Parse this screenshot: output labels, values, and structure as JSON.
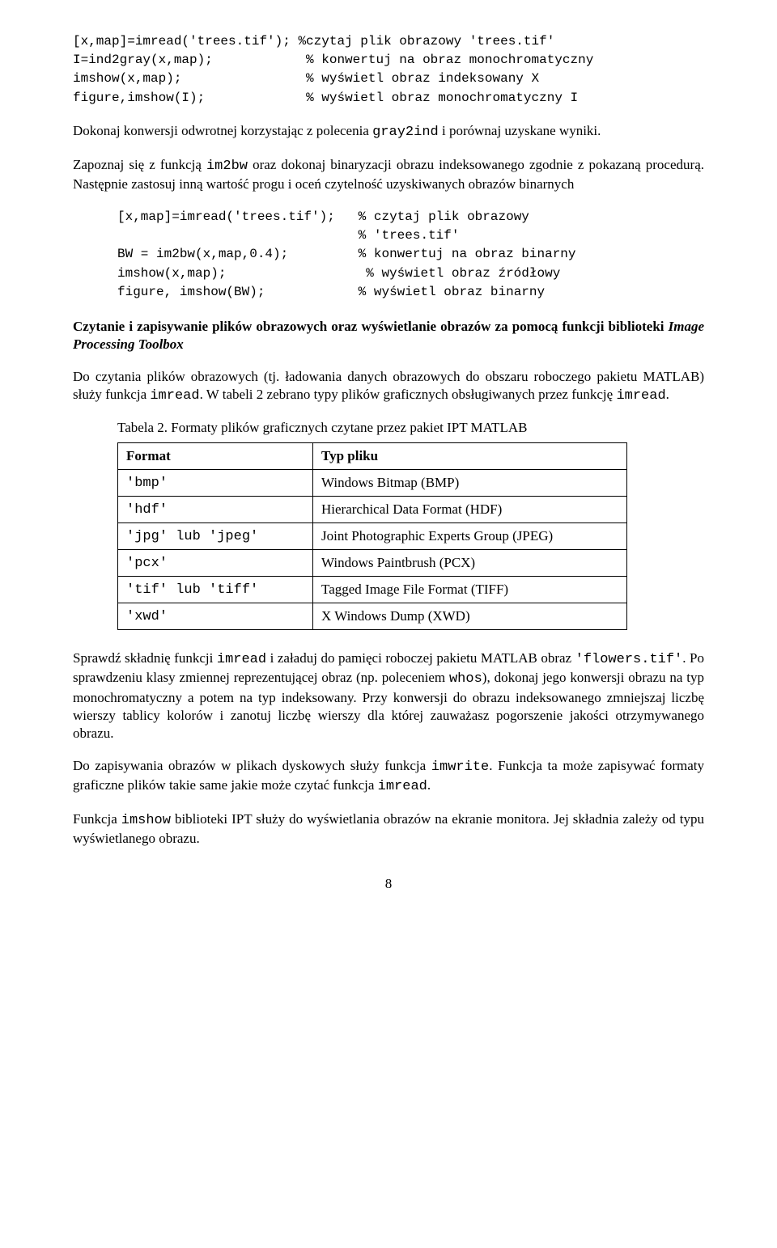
{
  "code_block_1": {
    "l1a": "[x,map]=imread('trees.tif');",
    "l1b": "%czytaj plik obrazowy 'trees.tif'",
    "l2a": "I=ind2gray(x,map);",
    "l2b": "% konwertuj na obraz monochromatyczny",
    "l3a": "imshow(x,map);",
    "l3b": "% wyświetl obraz indeksowany X",
    "l4a": "figure,imshow(I);",
    "l4b": "% wyświetl obraz monochromatyczny I"
  },
  "para_1a": "Dokonaj konwersji odwrotnej korzystając z polecenia ",
  "para_1_code": "gray2ind",
  "para_1b": "  i porównaj uzyskane wyniki.",
  "para_2a": "Zapoznaj się z funkcją ",
  "para_2_code": "im2bw",
  "para_2b": "  oraz dokonaj binaryzacji obrazu indeksowanego zgodnie z pokazaną procedurą. Następnie zastosuj inną wartość  progu i oceń czytelność uzyskiwanych obrazów binarnych",
  "code_block_2": {
    "l1a": "[x,map]=imread('trees.tif');",
    "l1b": "% czytaj plik obrazowy",
    "l2b": "% 'trees.tif'",
    "l3a": "BW = im2bw(x,map,0.4);",
    "l3b": "% konwertuj na obraz binarny",
    "l4a": "imshow(x,map);",
    "l4b": "% wyświetl obraz źródłowy",
    "l5a": "figure, imshow(BW);",
    "l5b": "% wyświetl obraz binarny"
  },
  "heading_1a": "Czytanie i zapisywanie plików obrazowych oraz wyświetlanie obrazów za pomocą funkcji biblioteki ",
  "heading_1_italic": "Image Processing Toolbox",
  "para_3a": "Do czytania plików obrazowych (tj. ładowania danych obrazowych do obszaru roboczego pakietu MATLAB) służy funkcja ",
  "para_3_code1": "imread",
  "para_3b": ". W tabeli 2 zebrano typy plików graficznych obsługiwanych przez funkcję ",
  "para_3_code2": "imread",
  "para_3c": ".",
  "table_caption": "Tabela 2. Formaty plików graficznych czytane przez pakiet IPT MATLAB",
  "table": {
    "header_format": "Format",
    "header_type": "Typ pliku",
    "rows": [
      {
        "format": "'bmp'",
        "type": "Windows Bitmap (BMP)"
      },
      {
        "format": "'hdf'",
        "type": "Hierarchical Data Format  (HDF)"
      },
      {
        "format": "'jpg' lub 'jpeg'",
        "type": "Joint Photographic Experts Group (JPEG)"
      },
      {
        "format": "'pcx'",
        "type": "Windows Paintbrush  (PCX)"
      },
      {
        "format": "'tif' lub 'tiff'",
        "type": "Tagged Image File Format (TIFF)"
      },
      {
        "format": "'xwd'",
        "type": "X Windows Dump (XWD)"
      }
    ]
  },
  "para_4a": "Sprawdź składnię funkcji ",
  "para_4_code1": "imread",
  "para_4b": " i załaduj do pamięci roboczej pakietu MATLAB obraz ",
  "para_4_code2": "'flowers.tif'",
  "para_4c": ". Po sprawdzeniu klasy zmiennej reprezentującej obraz (np. poleceniem ",
  "para_4_code3": "whos",
  "para_4d": "), dokonaj jego konwersji obrazu na typ monochromatyczny a potem na typ indeksowany. Przy konwersji do obrazu indeksowanego zmniejszaj liczbę wierszy tablicy kolorów i zanotuj liczbę wierszy dla której zauważasz pogorszenie jakości otrzymywanego obrazu.",
  "para_5a": "Do zapisywania obrazów w plikach dyskowych służy funkcja ",
  "para_5_code1": "imwrite",
  "para_5b": ". Funkcja ta może zapisywać formaty graficzne plików takie same jakie może czytać funkcja ",
  "para_5_code2": "imread",
  "para_5c": ".",
  "para_6a": "Funkcja ",
  "para_6_code1": "imshow",
  "para_6b": " biblioteki IPT służy do wyświetlania obrazów na ekranie monitora. Jej składnia zależy od typu wyświetlanego obrazu.",
  "page_number": "8"
}
